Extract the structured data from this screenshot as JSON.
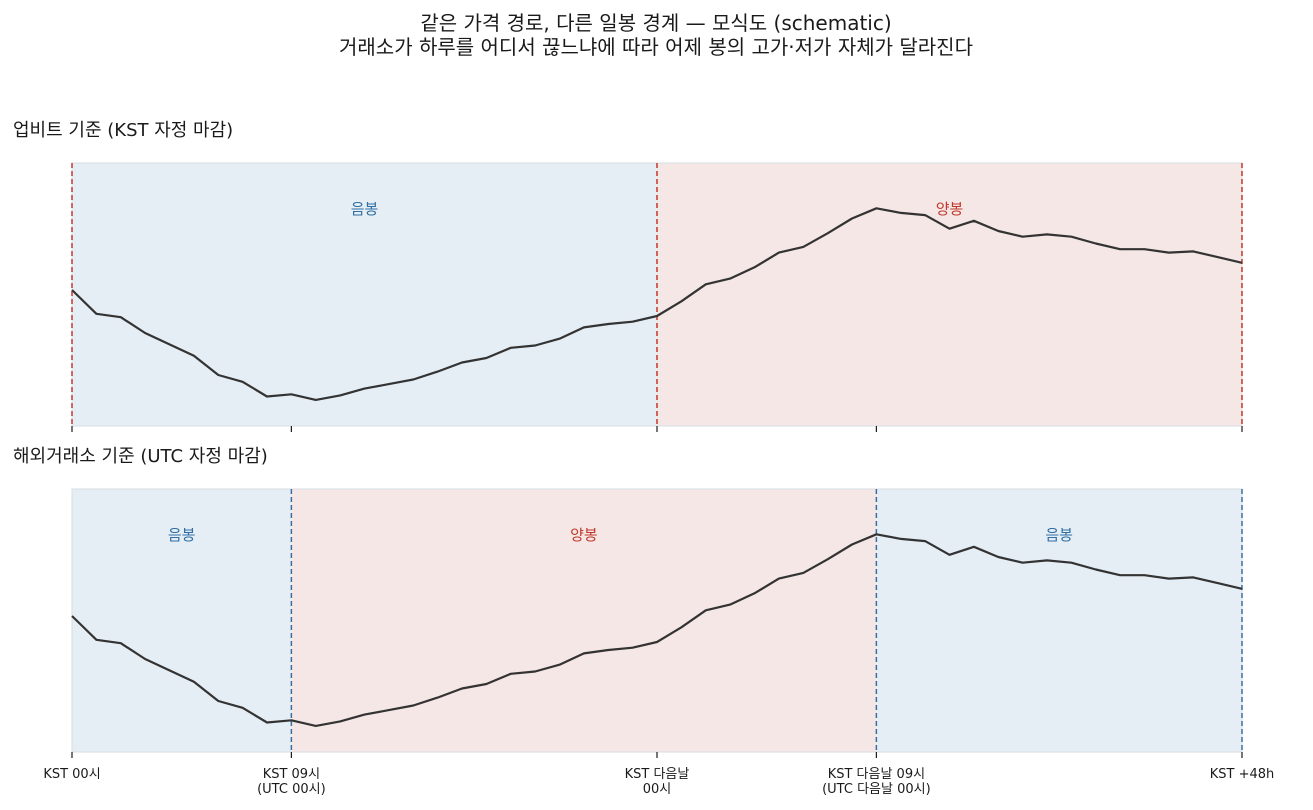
{
  "title": {
    "line1": "같은 가격 경로, 다른 일봉 경계 — 모식도 (schematic)",
    "line2": "거래소가 하루를 어디서 끊느냐에 따라 어제 봉의 고가·저가 자체가 달라진다"
  },
  "colors": {
    "price_line": "#333333",
    "bearish_fill": "#e6eef5",
    "bullish_fill": "#f6e7e7",
    "bearish_text": "#2f6fa3",
    "bullish_text": "#c0392b",
    "kst_boundary": "#c0392b",
    "utc_boundary": "#3a6ea5",
    "frame": "#d7dde3"
  },
  "chart_data": [
    {
      "type": "line",
      "title": "업비트 기준 (KST 자정 마감)",
      "x_unit": "hours since KST 00시",
      "xlim": [
        0,
        48
      ],
      "boundaries": [
        0,
        24,
        48
      ],
      "boundary_color": "kst",
      "candles": [
        {
          "start": 0,
          "end": 24,
          "label": "음봉",
          "kind": "bearish"
        },
        {
          "start": 24,
          "end": 48,
          "label": "양봉",
          "kind": "bullish"
        }
      ],
      "x": [
        0,
        1,
        2,
        3,
        4,
        5,
        6,
        7,
        8,
        9,
        10,
        11,
        12,
        13,
        14,
        15,
        16,
        17,
        18,
        19,
        20,
        21,
        22,
        23,
        24,
        25,
        26,
        27,
        28,
        29,
        30,
        31,
        32,
        33,
        34,
        35,
        36,
        37,
        38,
        39,
        40,
        41,
        42,
        43,
        44,
        45,
        46,
        47,
        48
      ],
      "y": [
        100.0,
        97.9,
        97.6,
        96.2,
        95.2,
        94.2,
        92.5,
        91.9,
        90.6,
        90.8,
        90.3,
        90.7,
        91.3,
        91.7,
        92.1,
        92.8,
        93.6,
        94.0,
        94.9,
        95.1,
        95.7,
        96.7,
        97.0,
        97.2,
        97.7,
        99.0,
        100.5,
        101.0,
        102.0,
        103.3,
        103.8,
        105.0,
        106.3,
        107.2,
        106.8,
        106.6,
        105.4,
        106.1,
        105.2,
        104.7,
        104.9,
        104.7,
        104.1,
        103.6,
        103.6,
        103.3,
        103.4,
        102.9,
        102.4
      ],
      "ylim": [
        88,
        111.2
      ],
      "x_ticks": [
        0,
        9,
        24,
        33,
        48
      ]
    },
    {
      "type": "line",
      "title": "해외거래소 기준 (UTC 자정 마감)",
      "x_unit": "hours since KST 00시",
      "xlim": [
        0,
        48
      ],
      "boundaries": [
        9,
        33,
        48
      ],
      "boundary_color": "utc",
      "candles": [
        {
          "start": 0,
          "end": 9,
          "label": "음봉",
          "kind": "bearish"
        },
        {
          "start": 9,
          "end": 33,
          "label": "양봉",
          "kind": "bullish"
        },
        {
          "start": 33,
          "end": 48,
          "label": "음봉",
          "kind": "bearish"
        }
      ],
      "x": [
        0,
        1,
        2,
        3,
        4,
        5,
        6,
        7,
        8,
        9,
        10,
        11,
        12,
        13,
        14,
        15,
        16,
        17,
        18,
        19,
        20,
        21,
        22,
        23,
        24,
        25,
        26,
        27,
        28,
        29,
        30,
        31,
        32,
        33,
        34,
        35,
        36,
        37,
        38,
        39,
        40,
        41,
        42,
        43,
        44,
        45,
        46,
        47,
        48
      ],
      "y": [
        100.0,
        97.9,
        97.6,
        96.2,
        95.2,
        94.2,
        92.5,
        91.9,
        90.6,
        90.8,
        90.3,
        90.7,
        91.3,
        91.7,
        92.1,
        92.8,
        93.6,
        94.0,
        94.9,
        95.1,
        95.7,
        96.7,
        97.0,
        97.2,
        97.7,
        99.0,
        100.5,
        101.0,
        102.0,
        103.3,
        103.8,
        105.0,
        106.3,
        107.2,
        106.8,
        106.6,
        105.4,
        106.1,
        105.2,
        104.7,
        104.9,
        104.7,
        104.1,
        103.6,
        103.6,
        103.3,
        103.4,
        102.9,
        102.4
      ],
      "ylim": [
        88,
        111.2
      ],
      "x_ticks": [
        0,
        9,
        24,
        33,
        48
      ],
      "x_tick_labels": [
        {
          "x": 0,
          "lines": [
            "KST 00시"
          ]
        },
        {
          "x": 9,
          "lines": [
            "KST 09시",
            "(UTC 00시)"
          ]
        },
        {
          "x": 24,
          "lines": [
            "KST 다음날",
            "00시"
          ]
        },
        {
          "x": 33,
          "lines": [
            "KST 다음날 09시",
            "(UTC 다음날 00시)"
          ]
        },
        {
          "x": 48,
          "lines": [
            "KST +48h"
          ]
        }
      ]
    }
  ]
}
